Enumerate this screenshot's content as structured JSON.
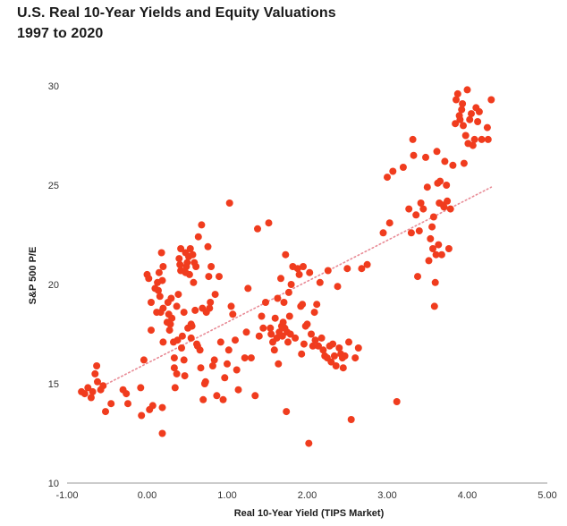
{
  "title": "U.S. Real 10-Year Yields and Equity Valuations",
  "subtitle": "1997 to 2020",
  "chart_data": {
    "type": "scatter",
    "title": "U.S. Real 10-Year Yields and Equity Valuations",
    "subtitle": "1997 to 2020",
    "xlabel": "Real 10-Year Yield (TIPS Market)",
    "ylabel": "S&P 500 P/E",
    "xlim": [
      -1.0,
      5.0
    ],
    "ylim": [
      10,
      30
    ],
    "x_ticks": [
      "-1.00",
      "0.00",
      "1.00",
      "2.00",
      "3.00",
      "4.00",
      "5.00"
    ],
    "y_ticks": [
      "10",
      "15",
      "20",
      "25",
      "30"
    ],
    "grid": false,
    "point_color": "#f03c1e",
    "trendline": {
      "style": "dotted",
      "color": "#e88a95",
      "x": [
        -0.5,
        4.3
      ],
      "y": [
        15.0,
        24.9
      ]
    },
    "points": [
      [
        -0.82,
        14.6
      ],
      [
        -0.78,
        14.5
      ],
      [
        -0.74,
        14.8
      ],
      [
        -0.7,
        14.3
      ],
      [
        -0.68,
        14.6
      ],
      [
        -0.65,
        15.5
      ],
      [
        -0.63,
        15.9
      ],
      [
        -0.62,
        15.1
      ],
      [
        -0.58,
        14.7
      ],
      [
        -0.55,
        14.9
      ],
      [
        -0.52,
        13.6
      ],
      [
        -0.45,
        14.0
      ],
      [
        -0.3,
        14.7
      ],
      [
        -0.26,
        14.5
      ],
      [
        -0.24,
        14.0
      ],
      [
        -0.08,
        14.8
      ],
      [
        -0.07,
        13.4
      ],
      [
        -0.04,
        16.2
      ],
      [
        0.0,
        20.5
      ],
      [
        0.02,
        20.3
      ],
      [
        0.03,
        13.7
      ],
      [
        0.05,
        19.1
      ],
      [
        0.05,
        17.7
      ],
      [
        0.07,
        13.9
      ],
      [
        0.1,
        19.8
      ],
      [
        0.12,
        18.6
      ],
      [
        0.13,
        20.1
      ],
      [
        0.14,
        19.7
      ],
      [
        0.15,
        20.6
      ],
      [
        0.16,
        19.4
      ],
      [
        0.17,
        18.6
      ],
      [
        0.18,
        21.6
      ],
      [
        0.19,
        20.2
      ],
      [
        0.19,
        12.5
      ],
      [
        0.19,
        13.8
      ],
      [
        0.2,
        18.8
      ],
      [
        0.2,
        17.1
      ],
      [
        0.2,
        20.9
      ],
      [
        0.25,
        18.1
      ],
      [
        0.26,
        19.1
      ],
      [
        0.27,
        18.5
      ],
      [
        0.28,
        17.7
      ],
      [
        0.29,
        18.0
      ],
      [
        0.3,
        19.3
      ],
      [
        0.31,
        18.3
      ],
      [
        0.33,
        17.1
      ],
      [
        0.34,
        16.3
      ],
      [
        0.34,
        15.8
      ],
      [
        0.35,
        14.8
      ],
      [
        0.37,
        15.5
      ],
      [
        0.37,
        18.9
      ],
      [
        0.38,
        17.2
      ],
      [
        0.39,
        19.5
      ],
      [
        0.4,
        21.3
      ],
      [
        0.41,
        21.0
      ],
      [
        0.42,
        20.7
      ],
      [
        0.42,
        21.8
      ],
      [
        0.43,
        16.8
      ],
      [
        0.44,
        17.4
      ],
      [
        0.46,
        16.2
      ],
      [
        0.46,
        18.6
      ],
      [
        0.47,
        15.4
      ],
      [
        0.48,
        20.6
      ],
      [
        0.48,
        21.6
      ],
      [
        0.49,
        20.9
      ],
      [
        0.5,
        21.1
      ],
      [
        0.51,
        17.8
      ],
      [
        0.52,
        21.4
      ],
      [
        0.53,
        20.5
      ],
      [
        0.54,
        21.8
      ],
      [
        0.55,
        18.0
      ],
      [
        0.55,
        17.3
      ],
      [
        0.56,
        17.9
      ],
      [
        0.57,
        21.5
      ],
      [
        0.58,
        20.1
      ],
      [
        0.59,
        21.1
      ],
      [
        0.6,
        18.7
      ],
      [
        0.61,
        20.9
      ],
      [
        0.62,
        17.0
      ],
      [
        0.63,
        16.9
      ],
      [
        0.64,
        22.4
      ],
      [
        0.66,
        16.7
      ],
      [
        0.67,
        15.8
      ],
      [
        0.68,
        23.0
      ],
      [
        0.69,
        18.8
      ],
      [
        0.7,
        14.2
      ],
      [
        0.72,
        15.0
      ],
      [
        0.73,
        15.1
      ],
      [
        0.74,
        18.6
      ],
      [
        0.76,
        21.9
      ],
      [
        0.77,
        20.4
      ],
      [
        0.78,
        18.8
      ],
      [
        0.79,
        19.1
      ],
      [
        0.8,
        20.9
      ],
      [
        0.82,
        15.9
      ],
      [
        0.84,
        16.2
      ],
      [
        0.85,
        19.5
      ],
      [
        0.87,
        14.4
      ],
      [
        0.9,
        20.4
      ],
      [
        0.92,
        17.1
      ],
      [
        0.95,
        14.2
      ],
      [
        0.97,
        15.3
      ],
      [
        1.0,
        16.0
      ],
      [
        1.02,
        16.7
      ],
      [
        1.03,
        24.1
      ],
      [
        1.05,
        18.9
      ],
      [
        1.07,
        18.5
      ],
      [
        1.1,
        17.2
      ],
      [
        1.12,
        15.7
      ],
      [
        1.14,
        14.7
      ],
      [
        1.22,
        16.3
      ],
      [
        1.24,
        17.6
      ],
      [
        1.26,
        19.8
      ],
      [
        1.3,
        16.3
      ],
      [
        1.35,
        14.4
      ],
      [
        1.38,
        22.8
      ],
      [
        1.4,
        17.4
      ],
      [
        1.43,
        18.4
      ],
      [
        1.45,
        17.8
      ],
      [
        1.48,
        19.1
      ],
      [
        1.52,
        23.1
      ],
      [
        1.54,
        17.8
      ],
      [
        1.55,
        17.5
      ],
      [
        1.57,
        17.1
      ],
      [
        1.59,
        16.7
      ],
      [
        1.6,
        18.3
      ],
      [
        1.62,
        17.3
      ],
      [
        1.63,
        19.3
      ],
      [
        1.64,
        16.0
      ],
      [
        1.65,
        17.6
      ],
      [
        1.67,
        20.3
      ],
      [
        1.68,
        17.9
      ],
      [
        1.69,
        17.4
      ],
      [
        1.7,
        18.1
      ],
      [
        1.71,
        19.1
      ],
      [
        1.72,
        17.8
      ],
      [
        1.73,
        21.5
      ],
      [
        1.74,
        13.6
      ],
      [
        1.75,
        17.6
      ],
      [
        1.76,
        17.1
      ],
      [
        1.77,
        19.6
      ],
      [
        1.78,
        18.4
      ],
      [
        1.79,
        17.5
      ],
      [
        1.8,
        20.0
      ],
      [
        1.82,
        20.9
      ],
      [
        1.85,
        17.3
      ],
      [
        1.88,
        20.8
      ],
      [
        1.9,
        20.5
      ],
      [
        1.92,
        18.9
      ],
      [
        1.93,
        16.5
      ],
      [
        1.94,
        19.0
      ],
      [
        1.95,
        20.9
      ],
      [
        1.96,
        17.0
      ],
      [
        1.98,
        17.9
      ],
      [
        2.0,
        18.0
      ],
      [
        2.02,
        12.0
      ],
      [
        2.03,
        20.6
      ],
      [
        2.05,
        17.5
      ],
      [
        2.07,
        16.9
      ],
      [
        2.09,
        18.6
      ],
      [
        2.1,
        17.2
      ],
      [
        2.12,
        19.0
      ],
      [
        2.14,
        16.9
      ],
      [
        2.16,
        20.1
      ],
      [
        2.18,
        17.3
      ],
      [
        2.2,
        16.7
      ],
      [
        2.22,
        16.4
      ],
      [
        2.25,
        16.3
      ],
      [
        2.26,
        20.7
      ],
      [
        2.28,
        16.9
      ],
      [
        2.3,
        16.1
      ],
      [
        2.32,
        17.0
      ],
      [
        2.34,
        16.4
      ],
      [
        2.36,
        15.9
      ],
      [
        2.38,
        19.9
      ],
      [
        2.4,
        16.8
      ],
      [
        2.42,
        16.5
      ],
      [
        2.44,
        16.3
      ],
      [
        2.45,
        15.8
      ],
      [
        2.47,
        16.4
      ],
      [
        2.5,
        20.8
      ],
      [
        2.52,
        17.1
      ],
      [
        2.55,
        13.2
      ],
      [
        2.6,
        16.3
      ],
      [
        2.64,
        16.8
      ],
      [
        2.68,
        20.8
      ],
      [
        2.75,
        21.0
      ],
      [
        2.95,
        22.6
      ],
      [
        3.0,
        25.4
      ],
      [
        3.03,
        23.1
      ],
      [
        3.07,
        25.7
      ],
      [
        3.12,
        14.1
      ],
      [
        3.2,
        25.9
      ],
      [
        3.27,
        23.8
      ],
      [
        3.3,
        22.6
      ],
      [
        3.32,
        27.3
      ],
      [
        3.33,
        26.5
      ],
      [
        3.36,
        23.5
      ],
      [
        3.38,
        20.4
      ],
      [
        3.4,
        22.7
      ],
      [
        3.42,
        24.1
      ],
      [
        3.45,
        23.8
      ],
      [
        3.48,
        26.4
      ],
      [
        3.5,
        24.9
      ],
      [
        3.52,
        21.2
      ],
      [
        3.54,
        22.3
      ],
      [
        3.56,
        22.9
      ],
      [
        3.57,
        21.8
      ],
      [
        3.58,
        23.4
      ],
      [
        3.59,
        18.9
      ],
      [
        3.6,
        20.1
      ],
      [
        3.61,
        21.5
      ],
      [
        3.62,
        26.7
      ],
      [
        3.63,
        25.1
      ],
      [
        3.64,
        22.0
      ],
      [
        3.65,
        24.1
      ],
      [
        3.66,
        25.2
      ],
      [
        3.68,
        21.5
      ],
      [
        3.7,
        24.0
      ],
      [
        3.71,
        23.9
      ],
      [
        3.72,
        26.2
      ],
      [
        3.74,
        25.0
      ],
      [
        3.75,
        24.2
      ],
      [
        3.77,
        21.8
      ],
      [
        3.79,
        23.8
      ],
      [
        3.82,
        26.0
      ],
      [
        3.85,
        28.1
      ],
      [
        3.86,
        29.3
      ],
      [
        3.88,
        29.6
      ],
      [
        3.9,
        28.5
      ],
      [
        3.91,
        28.3
      ],
      [
        3.93,
        28.8
      ],
      [
        3.94,
        29.1
      ],
      [
        3.95,
        28.0
      ],
      [
        3.96,
        26.1
      ],
      [
        3.98,
        27.5
      ],
      [
        4.0,
        29.8
      ],
      [
        4.01,
        27.1
      ],
      [
        4.03,
        28.3
      ],
      [
        4.05,
        28.6
      ],
      [
        4.07,
        27.0
      ],
      [
        4.09,
        27.3
      ],
      [
        4.11,
        28.9
      ],
      [
        4.13,
        28.2
      ],
      [
        4.15,
        28.7
      ],
      [
        4.18,
        27.3
      ],
      [
        4.25,
        27.9
      ],
      [
        4.26,
        27.3
      ],
      [
        4.3,
        29.3
      ]
    ]
  }
}
